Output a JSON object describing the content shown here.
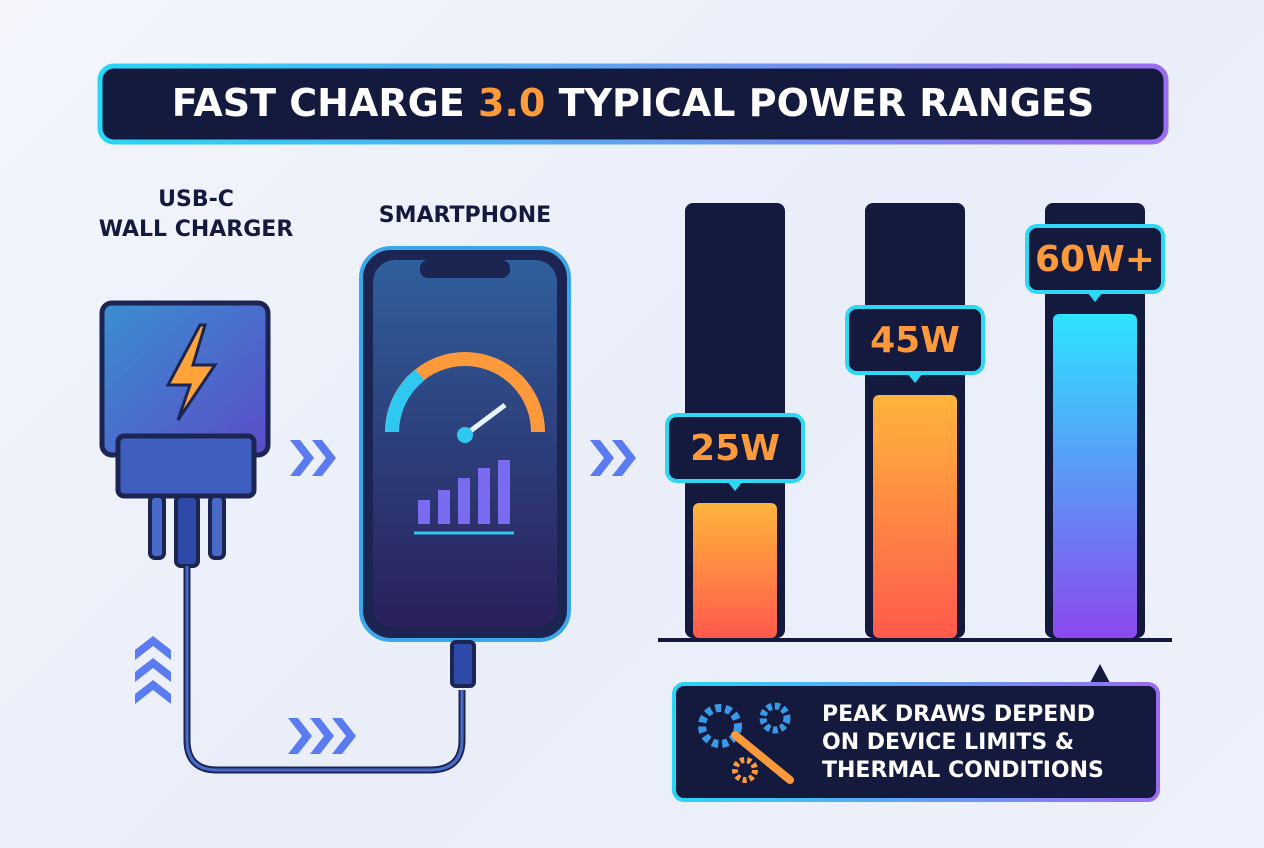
{
  "header": {
    "title_start": "FAST CHARGE",
    "title_highlight": "3.0",
    "title_end": "TYPICAL POWER RANGES"
  },
  "charger": {
    "label_lines": [
      "USB-C",
      "WALL CHARGER"
    ]
  },
  "phone": {
    "label": "SMARTPHONE"
  },
  "bars": {
    "values": [
      25,
      45,
      60
    ],
    "value_labels": [
      "25W",
      "45W",
      "60W+"
    ]
  },
  "note": {
    "lines": [
      "PEAK DRAWS DEPEND",
      "ON DEVICE LIMITS &",
      "THERMAL CONDITIONS"
    ]
  }
}
